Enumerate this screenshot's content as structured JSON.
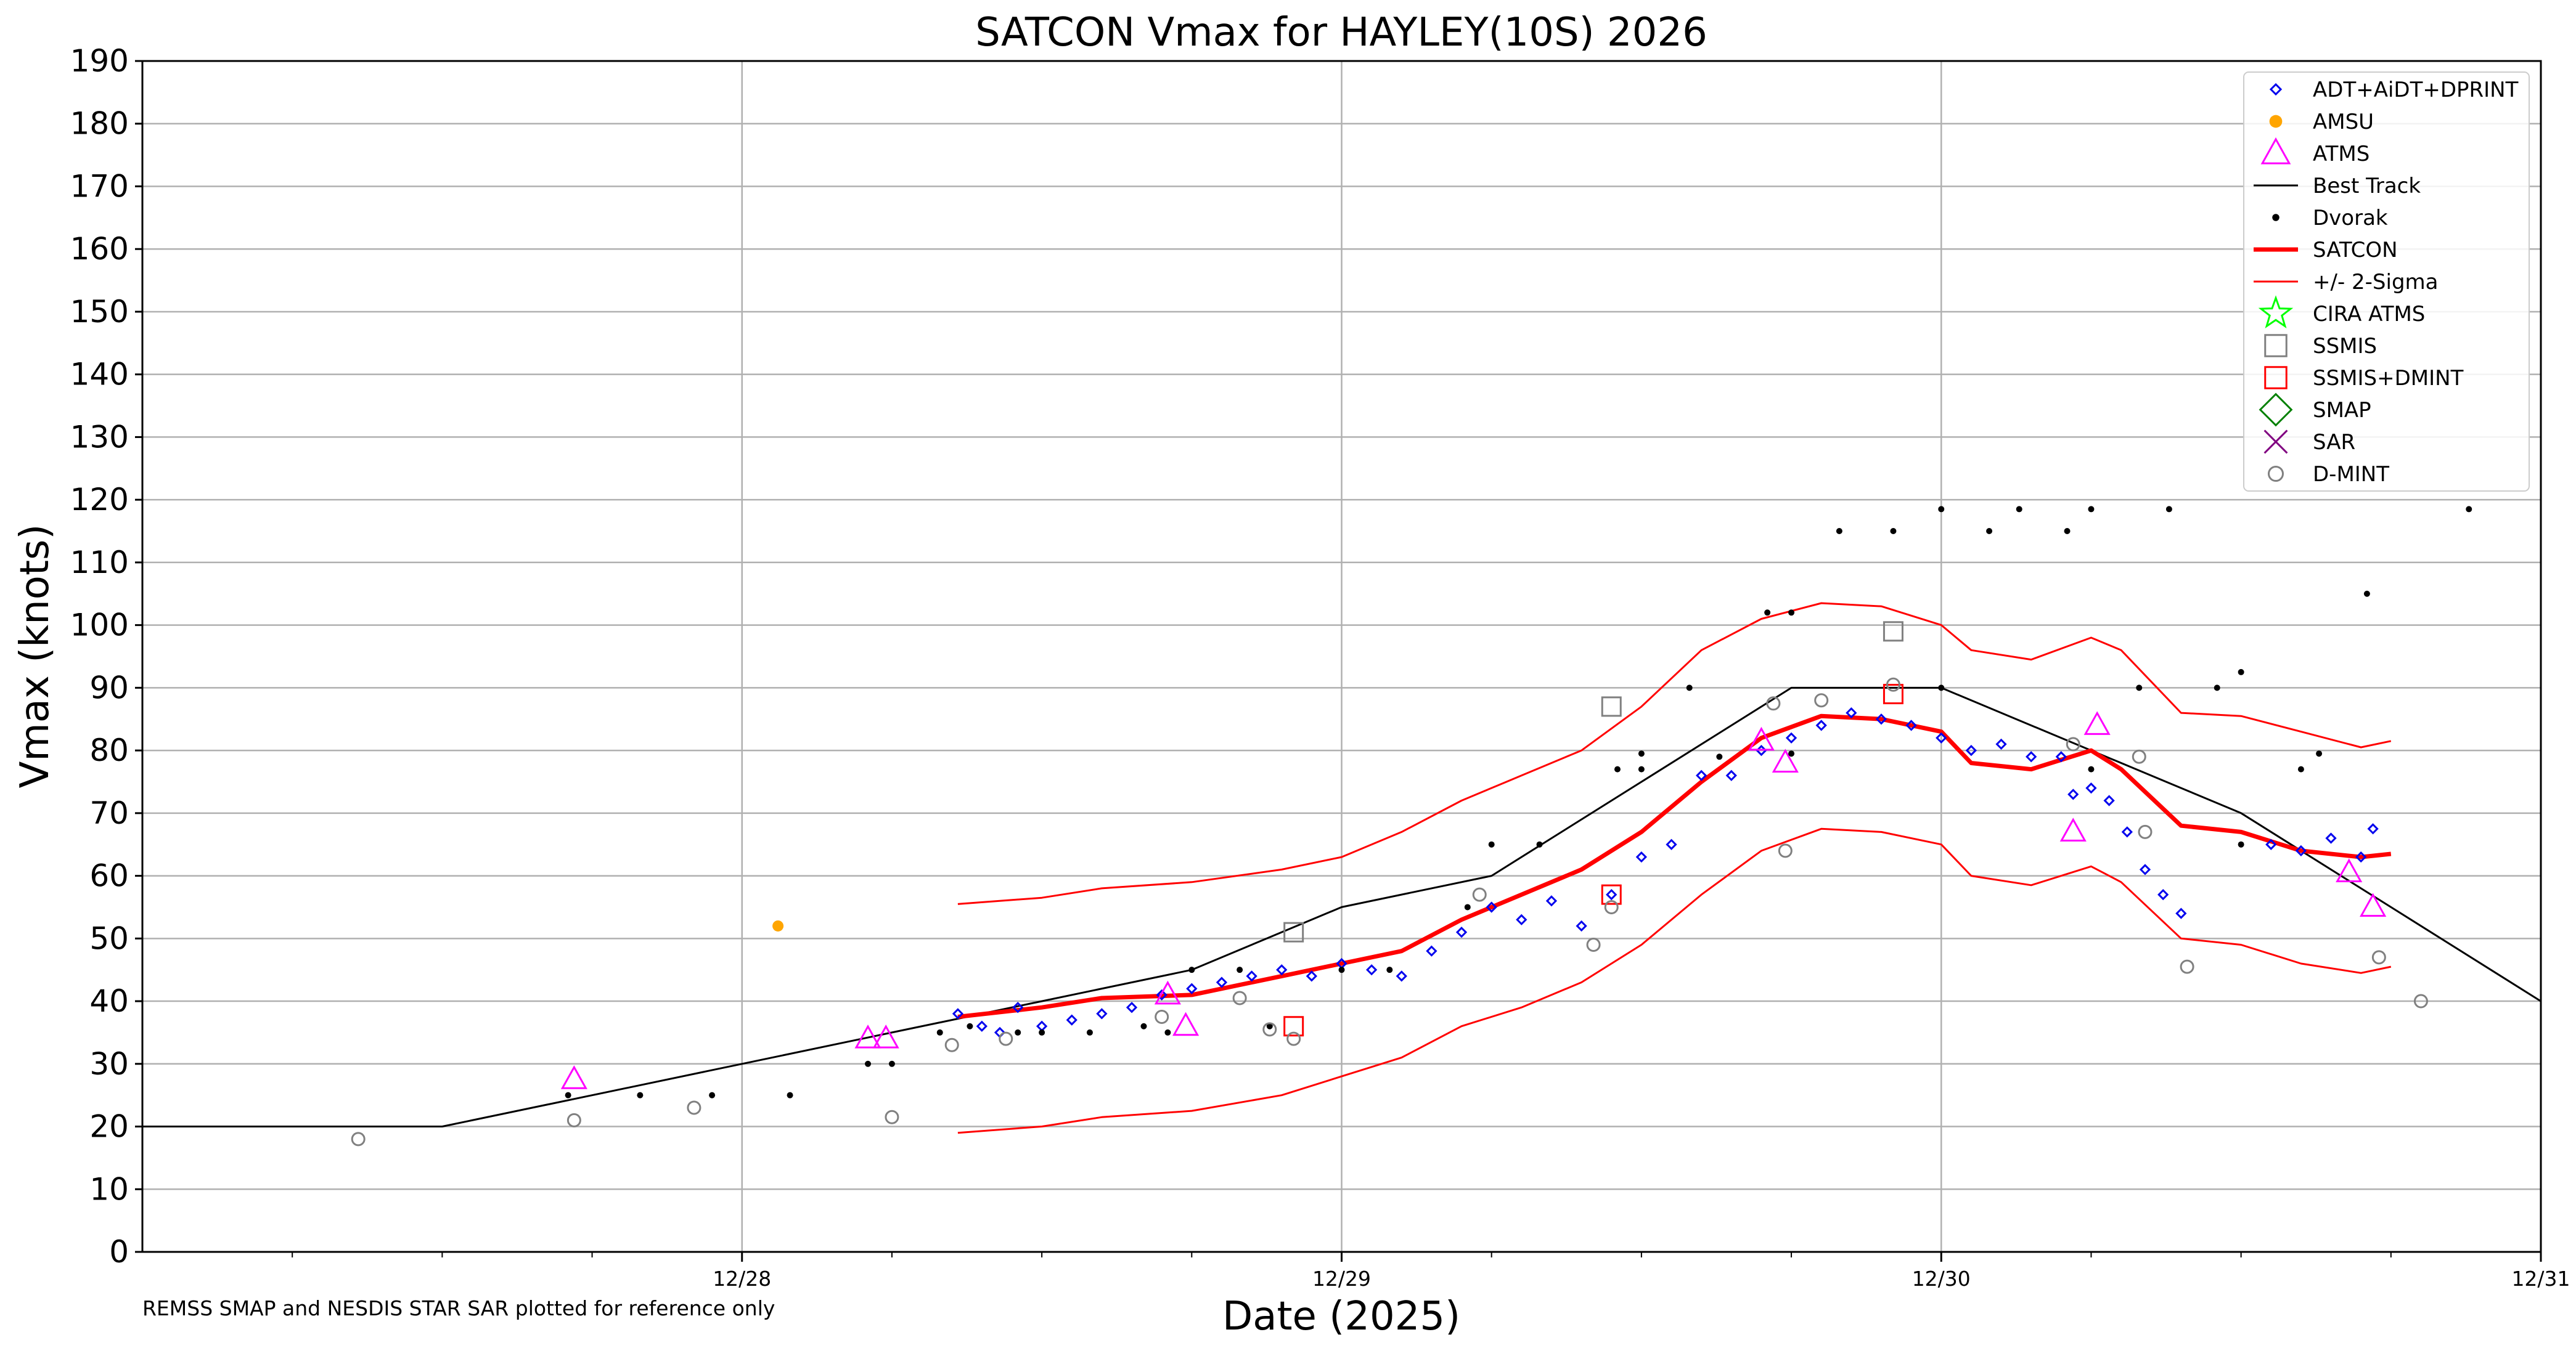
{
  "chart_data": {
    "type": "scatter",
    "title": "SATCON Vmax for HAYLEY(10S) 2026",
    "xlabel": "Date (2025)",
    "ylabel": "Vmax (knots)",
    "footnote": "REMSS SMAP and NESDIS STAR SAR plotted for reference only",
    "xlim_days": [
      27.0,
      31.0
    ],
    "ylim": [
      0,
      190
    ],
    "x_ticks": [
      {
        "v": 28,
        "label": "12/28"
      },
      {
        "v": 29,
        "label": "12/29"
      },
      {
        "v": 30,
        "label": "12/30"
      },
      {
        "v": 31,
        "label": "12/31"
      }
    ],
    "x_minor_ticks": [
      27.25,
      27.5,
      27.75,
      28.25,
      28.5,
      28.75,
      29.25,
      29.5,
      29.75,
      30.25,
      30.5,
      30.75
    ],
    "y_ticks": [
      0,
      10,
      20,
      30,
      40,
      50,
      60,
      70,
      80,
      90,
      100,
      110,
      120,
      130,
      140,
      150,
      160,
      170,
      180,
      190
    ],
    "grid": true,
    "legend_position": "top-right",
    "series": [
      {
        "name": "Best Track",
        "kind": "line",
        "color": "#000000",
        "points": [
          [
            27.0,
            20
          ],
          [
            27.5,
            20
          ],
          [
            27.75,
            25
          ],
          [
            28.0,
            30
          ],
          [
            28.25,
            35
          ],
          [
            28.5,
            40
          ],
          [
            28.75,
            45
          ],
          [
            29.0,
            55
          ],
          [
            29.25,
            60
          ],
          [
            29.5,
            75
          ],
          [
            29.75,
            90
          ],
          [
            30.0,
            90
          ],
          [
            30.25,
            80
          ],
          [
            30.5,
            70
          ],
          [
            30.75,
            55
          ],
          [
            31.0,
            40
          ]
        ]
      },
      {
        "name": "SATCON",
        "kind": "line",
        "color": "#ff0000",
        "points": [
          [
            28.36,
            37.5
          ],
          [
            28.5,
            39
          ],
          [
            28.6,
            40.5
          ],
          [
            28.75,
            41
          ],
          [
            28.9,
            44
          ],
          [
            29.0,
            46
          ],
          [
            29.1,
            48
          ],
          [
            29.2,
            53
          ],
          [
            29.3,
            57
          ],
          [
            29.4,
            61
          ],
          [
            29.5,
            67
          ],
          [
            29.6,
            75
          ],
          [
            29.7,
            82
          ],
          [
            29.8,
            85.5
          ],
          [
            29.9,
            85
          ],
          [
            30.0,
            83
          ],
          [
            30.05,
            78
          ],
          [
            30.15,
            77
          ],
          [
            30.25,
            80
          ],
          [
            30.3,
            77
          ],
          [
            30.4,
            68
          ],
          [
            30.5,
            67
          ],
          [
            30.6,
            64
          ],
          [
            30.7,
            63
          ],
          [
            30.75,
            63.5
          ]
        ]
      },
      {
        "name": "+/- 2-Sigma",
        "kind": "line",
        "color": "#ff0000",
        "points": [
          [
            28.36,
            55.5
          ],
          [
            28.5,
            56.5
          ],
          [
            28.6,
            58
          ],
          [
            28.75,
            59
          ],
          [
            28.9,
            61
          ],
          [
            29.0,
            63
          ],
          [
            29.1,
            67
          ],
          [
            29.2,
            72
          ],
          [
            29.3,
            76
          ],
          [
            29.4,
            80
          ],
          [
            29.5,
            87
          ],
          [
            29.6,
            96
          ],
          [
            29.7,
            101
          ],
          [
            29.8,
            103.5
          ],
          [
            29.9,
            103
          ],
          [
            30.0,
            100
          ],
          [
            30.05,
            96
          ],
          [
            30.15,
            94.5
          ],
          [
            30.25,
            98
          ],
          [
            30.3,
            96
          ],
          [
            30.4,
            86
          ],
          [
            30.5,
            85.5
          ],
          [
            30.6,
            83
          ],
          [
            30.7,
            80.5
          ],
          [
            30.75,
            81.5
          ]
        ]
      },
      {
        "name": "+/- 2-Sigma lower",
        "kind": "line",
        "color": "#ff0000",
        "points": [
          [
            28.36,
            19
          ],
          [
            28.5,
            20
          ],
          [
            28.6,
            21.5
          ],
          [
            28.75,
            22.5
          ],
          [
            28.9,
            25
          ],
          [
            29.0,
            28
          ],
          [
            29.1,
            31
          ],
          [
            29.2,
            36
          ],
          [
            29.3,
            39
          ],
          [
            29.4,
            43
          ],
          [
            29.5,
            49
          ],
          [
            29.6,
            57
          ],
          [
            29.7,
            64
          ],
          [
            29.8,
            67.5
          ],
          [
            29.9,
            67
          ],
          [
            30.0,
            65
          ],
          [
            30.05,
            60
          ],
          [
            30.15,
            58.5
          ],
          [
            30.25,
            61.5
          ],
          [
            30.3,
            59
          ],
          [
            30.4,
            50
          ],
          [
            30.5,
            49
          ],
          [
            30.6,
            46
          ],
          [
            30.7,
            44.5
          ],
          [
            30.75,
            45.5
          ]
        ]
      },
      {
        "name": "ADT+AiDT+DPRINT",
        "kind": "diamond",
        "color": "#0000ee",
        "points": [
          [
            28.36,
            38
          ],
          [
            28.4,
            36
          ],
          [
            28.43,
            35
          ],
          [
            28.46,
            39
          ],
          [
            28.5,
            36
          ],
          [
            28.55,
            37
          ],
          [
            28.6,
            38
          ],
          [
            28.65,
            39
          ],
          [
            28.7,
            41
          ],
          [
            28.75,
            42
          ],
          [
            28.8,
            43
          ],
          [
            28.85,
            44
          ],
          [
            28.9,
            45
          ],
          [
            28.95,
            44
          ],
          [
            29.0,
            46
          ],
          [
            29.05,
            45
          ],
          [
            29.1,
            44
          ],
          [
            29.15,
            48
          ],
          [
            29.2,
            51
          ],
          [
            29.25,
            55
          ],
          [
            29.3,
            53
          ],
          [
            29.35,
            56
          ],
          [
            29.4,
            52
          ],
          [
            29.45,
            57
          ],
          [
            29.5,
            63
          ],
          [
            29.55,
            65
          ],
          [
            29.6,
            76
          ],
          [
            29.65,
            76
          ],
          [
            29.7,
            80
          ],
          [
            29.75,
            82
          ],
          [
            29.8,
            84
          ],
          [
            29.85,
            86
          ],
          [
            29.9,
            85
          ],
          [
            29.95,
            84
          ],
          [
            30.0,
            82
          ],
          [
            30.05,
            80
          ],
          [
            30.1,
            81
          ],
          [
            30.15,
            79
          ],
          [
            30.2,
            79
          ],
          [
            30.22,
            73
          ],
          [
            30.25,
            74
          ],
          [
            30.28,
            72
          ],
          [
            30.31,
            67
          ],
          [
            30.34,
            61
          ],
          [
            30.37,
            57
          ],
          [
            30.4,
            54
          ],
          [
            30.55,
            65
          ],
          [
            30.6,
            64
          ],
          [
            30.65,
            66
          ],
          [
            30.7,
            63
          ],
          [
            30.72,
            67.5
          ]
        ]
      },
      {
        "name": "AMSU",
        "kind": "circle",
        "color": "#ffa500",
        "points": [
          [
            28.06,
            52
          ]
        ]
      },
      {
        "name": "ATMS",
        "kind": "triangle",
        "color": "#ff00ff",
        "points": [
          [
            27.72,
            27.5
          ],
          [
            28.21,
            34
          ],
          [
            28.24,
            34
          ],
          [
            28.71,
            41
          ],
          [
            28.74,
            36
          ],
          [
            29.7,
            81.5
          ],
          [
            29.74,
            78
          ],
          [
            30.22,
            67
          ],
          [
            30.26,
            84
          ],
          [
            30.68,
            60.5
          ],
          [
            30.72,
            55
          ]
        ]
      },
      {
        "name": "Dvorak",
        "kind": "dot",
        "color": "#000000",
        "points": [
          [
            27.71,
            25
          ],
          [
            27.83,
            25
          ],
          [
            27.95,
            25
          ],
          [
            28.08,
            25
          ],
          [
            28.21,
            30
          ],
          [
            28.25,
            30
          ],
          [
            28.33,
            35
          ],
          [
            28.38,
            36
          ],
          [
            28.46,
            35
          ],
          [
            28.5,
            35
          ],
          [
            28.58,
            35
          ],
          [
            28.67,
            36
          ],
          [
            28.71,
            35
          ],
          [
            28.75,
            45
          ],
          [
            28.83,
            45
          ],
          [
            28.88,
            36
          ],
          [
            29.0,
            45
          ],
          [
            29.08,
            45
          ],
          [
            29.21,
            55
          ],
          [
            29.25,
            65
          ],
          [
            29.33,
            65
          ],
          [
            29.46,
            77
          ],
          [
            29.5,
            77
          ],
          [
            29.5,
            79.5
          ],
          [
            29.58,
            90
          ],
          [
            29.63,
            79
          ],
          [
            29.71,
            102
          ],
          [
            29.75,
            102
          ],
          [
            29.75,
            79.5
          ],
          [
            29.83,
            115
          ],
          [
            29.92,
            115
          ],
          [
            30.0,
            118.5
          ],
          [
            30.0,
            90
          ],
          [
            30.08,
            115
          ],
          [
            30.13,
            118.5
          ],
          [
            30.21,
            115
          ],
          [
            30.25,
            118.5
          ],
          [
            30.25,
            77
          ],
          [
            30.33,
            90
          ],
          [
            30.38,
            118.5
          ],
          [
            30.46,
            90
          ],
          [
            30.5,
            92.5
          ],
          [
            30.5,
            65
          ],
          [
            30.6,
            77
          ],
          [
            30.63,
            79.5
          ],
          [
            30.71,
            105
          ],
          [
            30.88,
            118.5
          ]
        ]
      },
      {
        "name": "SSMIS",
        "kind": "square",
        "color": "#808080",
        "points": [
          [
            28.92,
            51
          ],
          [
            29.45,
            87
          ],
          [
            29.92,
            99
          ]
        ]
      },
      {
        "name": "SSMIS+DMINT",
        "kind": "square",
        "color": "#ff0000",
        "points": [
          [
            28.92,
            36
          ],
          [
            29.45,
            57
          ],
          [
            29.92,
            89
          ]
        ]
      },
      {
        "name": "D-MINT",
        "kind": "ring",
        "color": "#808080",
        "points": [
          [
            27.36,
            18
          ],
          [
            27.72,
            21
          ],
          [
            27.92,
            23
          ],
          [
            28.25,
            21.5
          ],
          [
            28.35,
            33
          ],
          [
            28.44,
            34
          ],
          [
            28.7,
            37.5
          ],
          [
            28.83,
            40.5
          ],
          [
            28.88,
            35.5
          ],
          [
            28.92,
            34
          ],
          [
            29.23,
            57
          ],
          [
            29.42,
            49
          ],
          [
            29.45,
            55
          ],
          [
            29.72,
            87.5
          ],
          [
            29.74,
            64
          ],
          [
            29.8,
            88
          ],
          [
            29.92,
            90.5
          ],
          [
            30.22,
            81
          ],
          [
            30.33,
            79
          ],
          [
            30.34,
            67
          ],
          [
            30.41,
            45.5
          ],
          [
            30.73,
            47
          ],
          [
            30.8,
            40
          ]
        ]
      }
    ],
    "legend": [
      {
        "label": "ADT+AiDT+DPRINT",
        "icon": "diamond",
        "color": "#0000ee"
      },
      {
        "label": "AMSU",
        "icon": "circle",
        "color": "#ffa500"
      },
      {
        "label": "ATMS",
        "icon": "triangle",
        "color": "#ff00ff"
      },
      {
        "label": "Best Track",
        "icon": "thin-line",
        "color": "#000000"
      },
      {
        "label": "Dvorak",
        "icon": "dot",
        "color": "#000000"
      },
      {
        "label": "SATCON",
        "icon": "thick-line",
        "color": "#ff0000"
      },
      {
        "label": "+/- 2-Sigma",
        "icon": "thin-line",
        "color": "#ff0000"
      },
      {
        "label": "CIRA ATMS",
        "icon": "star",
        "color": "#00ff00"
      },
      {
        "label": "SSMIS",
        "icon": "square",
        "color": "#808080"
      },
      {
        "label": "SSMIS+DMINT",
        "icon": "square",
        "color": "#ff0000"
      },
      {
        "label": "SMAP",
        "icon": "big-diamond",
        "color": "#008000"
      },
      {
        "label": "SAR",
        "icon": "x",
        "color": "#800080"
      },
      {
        "label": "D-MINT",
        "icon": "ring",
        "color": "#808080"
      }
    ]
  }
}
